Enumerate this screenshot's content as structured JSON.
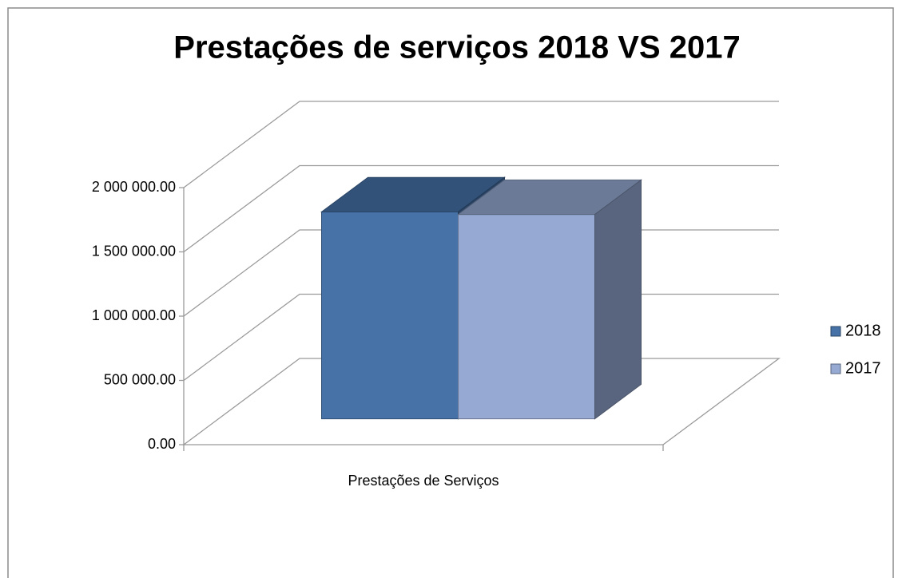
{
  "chart_data": {
    "type": "bar3d",
    "title": "Prestações de serviços 2018 VS 2017",
    "categories": [
      "Prestações de Serviços"
    ],
    "series": [
      {
        "name": "2018",
        "color": "#4672a8",
        "values": [
          1610000
        ]
      },
      {
        "name": "2017",
        "color": "#95a9d2",
        "values": [
          1590000
        ]
      }
    ],
    "ylim": [
      0,
      2000000
    ],
    "yticks": [
      {
        "value": 0,
        "label": "0.00"
      },
      {
        "value": 500000,
        "label": "500 000.00"
      },
      {
        "value": 1000000,
        "label": "1 000 000.00"
      },
      {
        "value": 1500000,
        "label": "1 500 000.00"
      },
      {
        "value": 2000000,
        "label": "2 000 000.00"
      }
    ],
    "grid": true,
    "legend": "right"
  }
}
